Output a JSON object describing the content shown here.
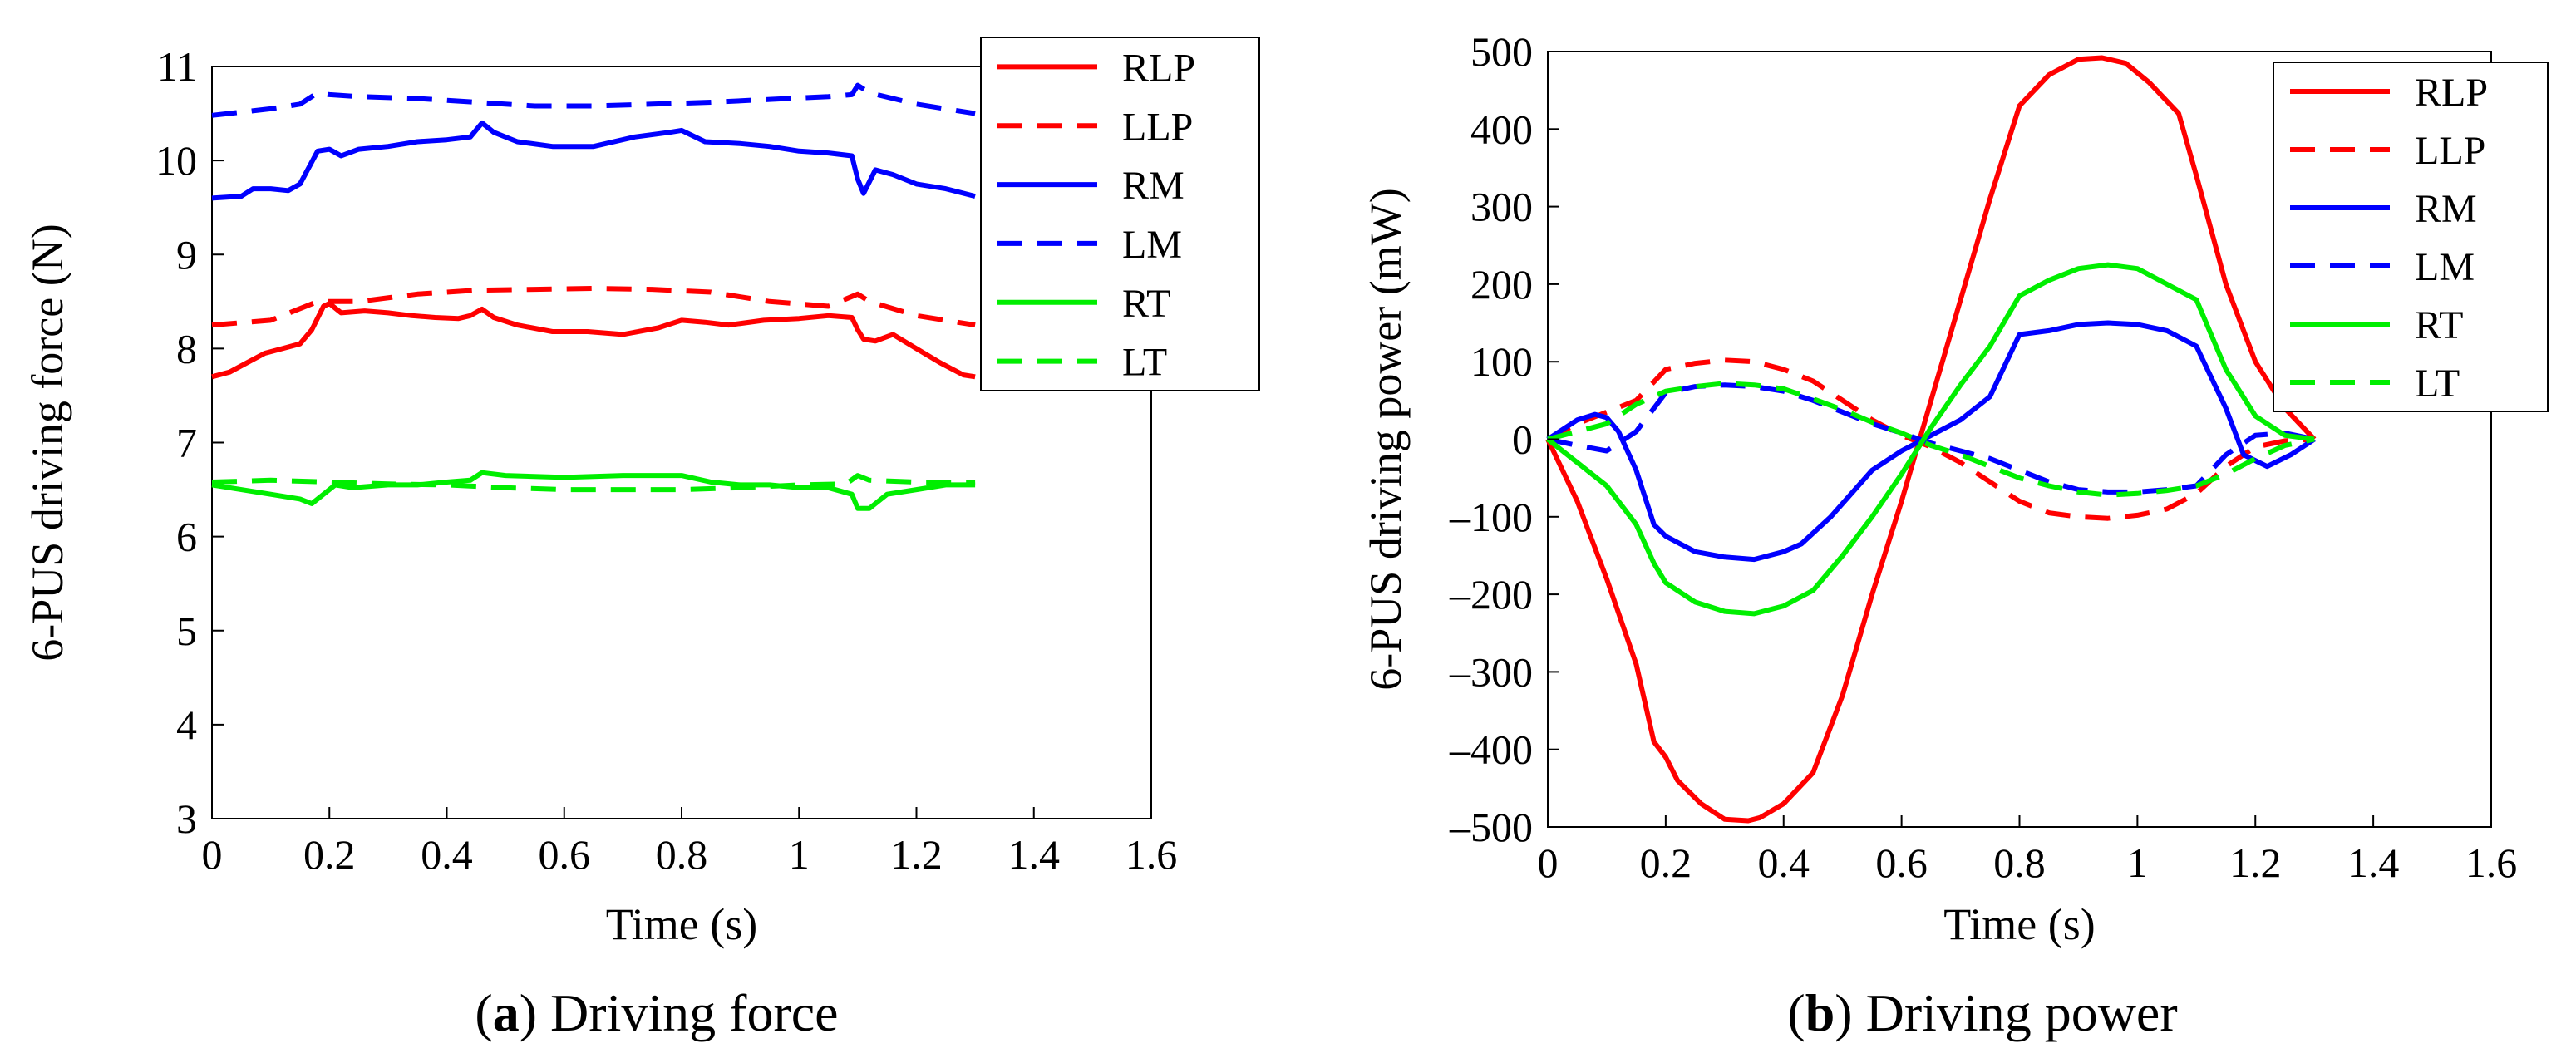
{
  "chart_data": [
    {
      "id": "a",
      "type": "line",
      "xlabel": "Time (s)",
      "ylabel": "6-PUS driving force (N)",
      "xlim": [
        0,
        1.6
      ],
      "ylim": [
        3,
        11
      ],
      "xticks": [
        0,
        0.2,
        0.4,
        0.6,
        0.8,
        1,
        1.2,
        1.4,
        1.6
      ],
      "xtick_labels": [
        "0",
        "0.2",
        "0.4",
        "0.6",
        "0.8",
        "1",
        "1.2",
        "1.4",
        "1.6"
      ],
      "yticks": [
        3,
        4,
        5,
        6,
        7,
        8,
        9,
        10,
        11
      ],
      "ytick_labels": [
        "3",
        "4",
        "5",
        "6",
        "7",
        "8",
        "9",
        "10",
        "11"
      ],
      "caption_bold": "a",
      "caption_text": "Driving force",
      "legend_location": "top-right",
      "series": [
        {
          "name": "RLP",
          "color": "#ff0000",
          "dash": "solid",
          "x": [
            0,
            0.03,
            0.06,
            0.09,
            0.12,
            0.15,
            0.17,
            0.19,
            0.2,
            0.22,
            0.26,
            0.3,
            0.34,
            0.38,
            0.42,
            0.44,
            0.46,
            0.48,
            0.52,
            0.58,
            0.64,
            0.7,
            0.76,
            0.8,
            0.84,
            0.88,
            0.94,
            1.0,
            1.05,
            1.09,
            1.1,
            1.11,
            1.13,
            1.16,
            1.2,
            1.24,
            1.28,
            1.3
          ],
          "y": [
            7.7,
            7.75,
            7.85,
            7.95,
            8.0,
            8.05,
            8.2,
            8.45,
            8.48,
            8.38,
            8.4,
            8.38,
            8.35,
            8.33,
            8.32,
            8.35,
            8.42,
            8.33,
            8.25,
            8.18,
            8.18,
            8.15,
            8.22,
            8.3,
            8.28,
            8.25,
            8.3,
            8.32,
            8.35,
            8.33,
            8.2,
            8.1,
            8.08,
            8.15,
            8.0,
            7.85,
            7.72,
            7.7
          ]
        },
        {
          "name": "LLP",
          "color": "#ff0000",
          "dash": "dashed",
          "x": [
            0,
            0.1,
            0.18,
            0.25,
            0.35,
            0.45,
            0.55,
            0.65,
            0.75,
            0.85,
            0.95,
            1.05,
            1.1,
            1.12,
            1.2,
            1.3
          ],
          "y": [
            8.25,
            8.3,
            8.5,
            8.5,
            8.58,
            8.62,
            8.63,
            8.64,
            8.63,
            8.6,
            8.5,
            8.45,
            8.58,
            8.5,
            8.35,
            8.25
          ]
        },
        {
          "name": "RM",
          "color": "#0000ff",
          "dash": "solid",
          "x": [
            0,
            0.05,
            0.07,
            0.1,
            0.13,
            0.15,
            0.18,
            0.2,
            0.22,
            0.25,
            0.3,
            0.35,
            0.4,
            0.44,
            0.46,
            0.48,
            0.52,
            0.58,
            0.65,
            0.72,
            0.78,
            0.8,
            0.84,
            0.9,
            0.95,
            1.0,
            1.05,
            1.09,
            1.1,
            1.11,
            1.13,
            1.16,
            1.2,
            1.25,
            1.3
          ],
          "y": [
            9.6,
            9.62,
            9.7,
            9.7,
            9.68,
            9.75,
            10.1,
            10.12,
            10.05,
            10.12,
            10.15,
            10.2,
            10.22,
            10.25,
            10.4,
            10.3,
            10.2,
            10.15,
            10.15,
            10.25,
            10.3,
            10.32,
            10.2,
            10.18,
            10.15,
            10.1,
            10.08,
            10.05,
            9.8,
            9.65,
            9.9,
            9.85,
            9.75,
            9.7,
            9.62
          ]
        },
        {
          "name": "LM",
          "color": "#0000ff",
          "dash": "dashed",
          "x": [
            0,
            0.1,
            0.15,
            0.18,
            0.2,
            0.25,
            0.35,
            0.45,
            0.55,
            0.65,
            0.75,
            0.85,
            0.95,
            1.05,
            1.09,
            1.1,
            1.12,
            1.2,
            1.3
          ],
          "y": [
            10.48,
            10.55,
            10.6,
            10.72,
            10.7,
            10.68,
            10.66,
            10.62,
            10.58,
            10.58,
            10.6,
            10.62,
            10.65,
            10.68,
            10.7,
            10.8,
            10.72,
            10.6,
            10.5
          ]
        },
        {
          "name": "RT",
          "color": "#00ee00",
          "dash": "solid",
          "x": [
            0,
            0.05,
            0.1,
            0.15,
            0.17,
            0.19,
            0.21,
            0.24,
            0.3,
            0.35,
            0.4,
            0.44,
            0.46,
            0.5,
            0.6,
            0.7,
            0.75,
            0.8,
            0.85,
            0.9,
            0.95,
            1.0,
            1.05,
            1.09,
            1.1,
            1.12,
            1.15,
            1.2,
            1.25,
            1.3
          ],
          "y": [
            6.55,
            6.5,
            6.45,
            6.4,
            6.35,
            6.45,
            6.55,
            6.52,
            6.55,
            6.55,
            6.58,
            6.6,
            6.68,
            6.65,
            6.63,
            6.65,
            6.65,
            6.65,
            6.58,
            6.55,
            6.55,
            6.52,
            6.52,
            6.45,
            6.3,
            6.3,
            6.45,
            6.5,
            6.55,
            6.55
          ]
        },
        {
          "name": "LT",
          "color": "#00ee00",
          "dash": "dashed",
          "x": [
            0,
            0.1,
            0.2,
            0.3,
            0.4,
            0.5,
            0.6,
            0.7,
            0.8,
            0.9,
            1.0,
            1.08,
            1.1,
            1.12,
            1.2,
            1.3
          ],
          "y": [
            6.58,
            6.6,
            6.58,
            6.56,
            6.55,
            6.52,
            6.5,
            6.5,
            6.5,
            6.52,
            6.55,
            6.56,
            6.65,
            6.6,
            6.58,
            6.58
          ]
        }
      ]
    },
    {
      "id": "b",
      "type": "line",
      "xlabel": "Time (s)",
      "ylabel": "6-PUS driving power (mW)",
      "xlim": [
        0,
        1.6
      ],
      "ylim": [
        -500,
        500
      ],
      "xticks": [
        0,
        0.2,
        0.4,
        0.6,
        0.8,
        1,
        1.2,
        1.4,
        1.6
      ],
      "xtick_labels": [
        "0",
        "0.2",
        "0.4",
        "0.6",
        "0.8",
        "1",
        "1.2",
        "1.4",
        "1.6"
      ],
      "yticks": [
        -500,
        -400,
        -300,
        -200,
        -100,
        0,
        100,
        200,
        300,
        400,
        500
      ],
      "ytick_labels": [
        "–500",
        "–400",
        "–300",
        "–200",
        "–100",
        "0",
        "100",
        "200",
        "300",
        "400",
        "500"
      ],
      "caption_bold": "b",
      "caption_text": "Driving power",
      "legend_location": "top-right",
      "series": [
        {
          "name": "RLP",
          "color": "#ff0000",
          "dash": "solid",
          "x": [
            0,
            0.05,
            0.1,
            0.15,
            0.18,
            0.2,
            0.22,
            0.26,
            0.3,
            0.34,
            0.36,
            0.4,
            0.45,
            0.5,
            0.55,
            0.6,
            0.65,
            0.7,
            0.75,
            0.8,
            0.85,
            0.9,
            0.94,
            0.98,
            1.02,
            1.07,
            1.1,
            1.15,
            1.2,
            1.25,
            1.3
          ],
          "y": [
            0,
            -80,
            -180,
            -290,
            -390,
            -410,
            -440,
            -470,
            -490,
            -492,
            -488,
            -470,
            -430,
            -330,
            -200,
            -80,
            50,
            180,
            310,
            430,
            470,
            490,
            492,
            485,
            460,
            420,
            340,
            200,
            100,
            40,
            0
          ]
        },
        {
          "name": "LLP",
          "color": "#ff0000",
          "dash": "dashed",
          "x": [
            0,
            0.05,
            0.1,
            0.15,
            0.2,
            0.25,
            0.3,
            0.35,
            0.4,
            0.45,
            0.5,
            0.55,
            0.6,
            0.65,
            0.7,
            0.75,
            0.8,
            0.85,
            0.9,
            0.95,
            1.0,
            1.05,
            1.1,
            1.15,
            1.2,
            1.25,
            1.3
          ],
          "y": [
            0,
            20,
            35,
            50,
            90,
            98,
            102,
            100,
            90,
            75,
            50,
            25,
            5,
            -10,
            -30,
            -55,
            -80,
            -95,
            -100,
            -102,
            -98,
            -90,
            -70,
            -35,
            -10,
            -2,
            0
          ]
        },
        {
          "name": "RM",
          "color": "#0000ff",
          "dash": "solid",
          "x": [
            0,
            0.05,
            0.08,
            0.1,
            0.12,
            0.15,
            0.18,
            0.2,
            0.25,
            0.3,
            0.35,
            0.4,
            0.43,
            0.48,
            0.55,
            0.6,
            0.65,
            0.7,
            0.75,
            0.8,
            0.85,
            0.9,
            0.95,
            1.0,
            1.05,
            1.1,
            1.15,
            1.18,
            1.22,
            1.26,
            1.3
          ],
          "y": [
            0,
            25,
            32,
            28,
            10,
            -40,
            -110,
            -125,
            -145,
            -152,
            -155,
            -145,
            -135,
            -100,
            -40,
            -15,
            5,
            25,
            55,
            135,
            140,
            148,
            150,
            148,
            140,
            120,
            40,
            -20,
            -35,
            -20,
            0
          ]
        },
        {
          "name": "LM",
          "color": "#0000ff",
          "dash": "dashed",
          "x": [
            0,
            0.05,
            0.1,
            0.15,
            0.2,
            0.25,
            0.3,
            0.35,
            0.4,
            0.45,
            0.5,
            0.55,
            0.6,
            0.65,
            0.7,
            0.75,
            0.8,
            0.85,
            0.9,
            0.95,
            1.0,
            1.05,
            1.1,
            1.15,
            1.2,
            1.25,
            1.3
          ],
          "y": [
            0,
            -8,
            -15,
            10,
            60,
            68,
            70,
            68,
            62,
            50,
            35,
            20,
            8,
            -5,
            -15,
            -25,
            -40,
            -55,
            -65,
            -68,
            -68,
            -65,
            -60,
            -20,
            5,
            8,
            0
          ]
        },
        {
          "name": "RT",
          "color": "#00ee00",
          "dash": "solid",
          "x": [
            0,
            0.05,
            0.1,
            0.15,
            0.18,
            0.2,
            0.25,
            0.3,
            0.35,
            0.4,
            0.45,
            0.5,
            0.55,
            0.6,
            0.65,
            0.7,
            0.75,
            0.8,
            0.85,
            0.9,
            0.95,
            1.0,
            1.05,
            1.1,
            1.15,
            1.2,
            1.25,
            1.3
          ],
          "y": [
            0,
            -30,
            -60,
            -110,
            -160,
            -185,
            -210,
            -222,
            -225,
            -215,
            -195,
            -150,
            -100,
            -45,
            15,
            70,
            120,
            185,
            205,
            220,
            225,
            220,
            200,
            180,
            90,
            30,
            5,
            0
          ]
        },
        {
          "name": "LT",
          "color": "#00ee00",
          "dash": "dashed",
          "x": [
            0,
            0.05,
            0.1,
            0.15,
            0.2,
            0.25,
            0.3,
            0.35,
            0.4,
            0.45,
            0.5,
            0.55,
            0.6,
            0.65,
            0.7,
            0.75,
            0.8,
            0.85,
            0.9,
            0.95,
            1.0,
            1.05,
            1.1,
            1.15,
            1.2,
            1.25,
            1.3
          ],
          "y": [
            0,
            10,
            20,
            45,
            62,
            68,
            72,
            70,
            65,
            52,
            38,
            22,
            8,
            -8,
            -20,
            -35,
            -50,
            -60,
            -68,
            -72,
            -70,
            -66,
            -60,
            -45,
            -25,
            -8,
            0
          ]
        }
      ]
    }
  ]
}
